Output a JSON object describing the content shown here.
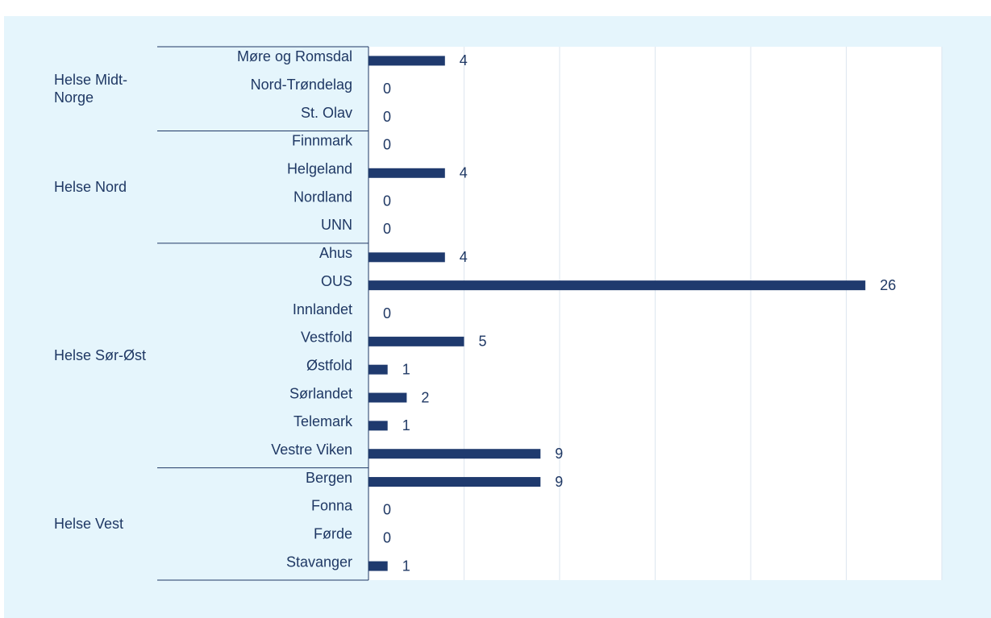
{
  "chart_data": {
    "type": "bar",
    "color": "#1f3a6e",
    "xlim": [
      0,
      30
    ],
    "xticks": [
      0,
      5,
      10,
      15,
      20,
      25,
      30
    ],
    "grid": true,
    "groups": [
      {
        "name": "Helse Midt-Norge",
        "categories": [
          "Møre og Romsdal",
          "Nord-Trøndelag",
          "St. Olav"
        ],
        "values": [
          4,
          0,
          0
        ]
      },
      {
        "name": "Helse Nord",
        "categories": [
          "Finnmark",
          "Helgeland",
          "Nordland",
          "UNN"
        ],
        "values": [
          0,
          4,
          0,
          0
        ]
      },
      {
        "name": "Helse Sør-Øst",
        "categories": [
          "Ahus",
          "OUS",
          "Innlandet",
          "Vestfold",
          "Østfold",
          "Sørlandet",
          "Telemark",
          "Vestre Viken"
        ],
        "values": [
          4,
          26,
          0,
          5,
          1,
          2,
          1,
          9
        ]
      },
      {
        "name": "Helse Vest",
        "categories": [
          "Bergen",
          "Fonna",
          "Førde",
          "Stavanger"
        ],
        "values": [
          9,
          0,
          0,
          1
        ]
      }
    ]
  }
}
